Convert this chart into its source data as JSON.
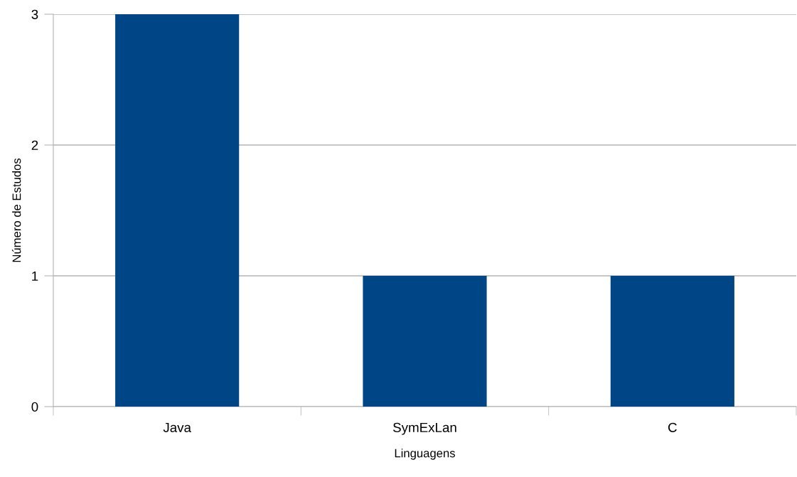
{
  "chart_data": {
    "type": "bar",
    "xlabel": "Linguagens",
    "ylabel": "Número de Estudos",
    "categories": [
      "Java",
      "SymExLan",
      "C"
    ],
    "values": [
      3,
      1,
      1
    ],
    "color": "#004586",
    "ylim": [
      0,
      3
    ],
    "yticks": [
      0,
      1,
      2,
      3
    ],
    "grid": "y",
    "legend": false
  }
}
